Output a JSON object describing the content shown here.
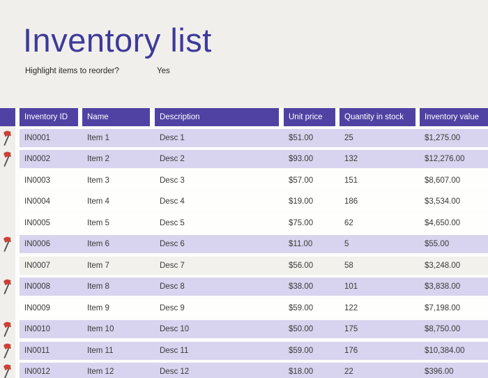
{
  "page": {
    "title": "Inventory list",
    "reorder_label": "Highlight items to reorder?",
    "reorder_value": "Yes"
  },
  "colors": {
    "page_bg": "#f0efeb",
    "header_bg": "#4f42a3",
    "header_text": "#ffffff",
    "title_text": "#3e3a9a",
    "row_lavender": "#d8d3ee",
    "row_white": "#fefefd",
    "row_gray": "#f2f1ec",
    "flag_red": "#cc4036",
    "flag_pole": "#4d4d4d",
    "body_text": "#3a3a3a"
  },
  "table": {
    "columns": {
      "inventory_id": "Inventory ID",
      "name": "Name",
      "description": "Description",
      "unit_price": "Unit price",
      "quantity_in_stock": "Quantity in stock",
      "inventory_value": "Inventory value"
    },
    "rows": [
      {
        "flag": true,
        "bg": "lavender",
        "inventory_id": "IN0001",
        "name": "Item 1",
        "description": "Desc 1",
        "unit_price": "$51.00",
        "quantity_in_stock": "25",
        "inventory_value": "$1,275.00"
      },
      {
        "flag": true,
        "bg": "lavender",
        "inventory_id": "IN0002",
        "name": "Item 2",
        "description": "Desc 2",
        "unit_price": "$93.00",
        "quantity_in_stock": "132",
        "inventory_value": "$12,276.00"
      },
      {
        "flag": false,
        "bg": "white",
        "inventory_id": "IN0003",
        "name": "Item 3",
        "description": "Desc 3",
        "unit_price": "$57.00",
        "quantity_in_stock": "151",
        "inventory_value": "$8,607.00"
      },
      {
        "flag": false,
        "bg": "white",
        "inventory_id": "IN0004",
        "name": "Item 4",
        "description": "Desc 4",
        "unit_price": "$19.00",
        "quantity_in_stock": "186",
        "inventory_value": "$3,534.00"
      },
      {
        "flag": false,
        "bg": "white",
        "inventory_id": "IN0005",
        "name": "Item 5",
        "description": "Desc 5",
        "unit_price": "$75.00",
        "quantity_in_stock": "62",
        "inventory_value": "$4,650.00"
      },
      {
        "flag": true,
        "bg": "lavender",
        "inventory_id": "IN0006",
        "name": "Item 6",
        "description": "Desc 6",
        "unit_price": "$11.00",
        "quantity_in_stock": "5",
        "inventory_value": "$55.00"
      },
      {
        "flag": false,
        "bg": "gray",
        "inventory_id": "IN0007",
        "name": "Item 7",
        "description": "Desc 7",
        "unit_price": "$56.00",
        "quantity_in_stock": "58",
        "inventory_value": "$3,248.00"
      },
      {
        "flag": true,
        "bg": "lavender",
        "inventory_id": "IN0008",
        "name": "Item 8",
        "description": "Desc 8",
        "unit_price": "$38.00",
        "quantity_in_stock": "101",
        "inventory_value": "$3,838.00"
      },
      {
        "flag": false,
        "bg": "white",
        "inventory_id": "IN0009",
        "name": "Item 9",
        "description": "Desc 9",
        "unit_price": "$59.00",
        "quantity_in_stock": "122",
        "inventory_value": "$7,198.00"
      },
      {
        "flag": true,
        "bg": "lavender",
        "inventory_id": "IN0010",
        "name": "Item 10",
        "description": "Desc 10",
        "unit_price": "$50.00",
        "quantity_in_stock": "175",
        "inventory_value": "$8,750.00"
      },
      {
        "flag": true,
        "bg": "lavender",
        "inventory_id": "IN0011",
        "name": "Item 11",
        "description": "Desc 11",
        "unit_price": "$59.00",
        "quantity_in_stock": "176",
        "inventory_value": "$10,384.00"
      },
      {
        "flag": true,
        "bg": "lavender",
        "inventory_id": "IN0012",
        "name": "Item 12",
        "description": "Desc 12",
        "unit_price": "$18.00",
        "quantity_in_stock": "22",
        "inventory_value": "$396.00"
      }
    ]
  }
}
